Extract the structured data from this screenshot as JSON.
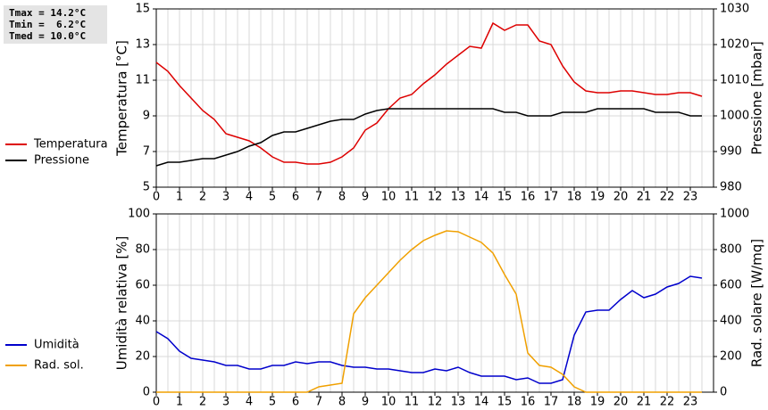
{
  "stats": [
    "Tmax = 14.2°C",
    "Tmin =  6.2°C",
    "Tmed = 10.0°C"
  ],
  "chart_data": [
    {
      "type": "line",
      "ylabel": "Temperatura [°C]",
      "y2label": "Pressione [mbar]",
      "x": [
        0,
        0.5,
        1,
        1.5,
        2,
        2.5,
        3,
        3.5,
        4,
        4.5,
        5,
        5.5,
        6,
        6.5,
        7,
        7.5,
        8,
        8.5,
        9,
        9.5,
        10,
        10.5,
        11,
        11.5,
        12,
        12.5,
        13,
        13.5,
        14,
        14.5,
        15,
        15.5,
        16,
        16.5,
        17,
        17.5,
        18,
        18.5,
        19,
        19.5,
        20,
        20.5,
        21,
        21.5,
        22,
        22.5,
        23,
        23.5
      ],
      "xlim": [
        0,
        24
      ],
      "xticks": [
        0,
        1,
        2,
        3,
        4,
        5,
        6,
        7,
        8,
        9,
        10,
        11,
        12,
        13,
        14,
        15,
        16,
        17,
        18,
        19,
        20,
        21,
        22,
        23
      ],
      "ylim": [
        5,
        15
      ],
      "yticks": [
        5,
        7,
        9,
        11,
        13,
        15
      ],
      "y2lim": [
        980,
        1030
      ],
      "y2ticks": [
        980,
        990,
        1000,
        1010,
        1020,
        1030
      ],
      "grid": true,
      "series": [
        {
          "name": "Temperatura",
          "color": "#dd0000",
          "values": [
            12.0,
            11.5,
            10.7,
            10.0,
            9.3,
            8.8,
            8.0,
            7.8,
            7.6,
            7.2,
            6.7,
            6.4,
            6.4,
            6.3,
            6.3,
            6.4,
            6.7,
            7.2,
            8.2,
            8.6,
            9.4,
            10.0,
            10.2,
            10.8,
            11.3,
            11.9,
            12.4,
            12.9,
            12.8,
            14.2,
            13.8,
            14.1,
            14.1,
            13.2,
            13.0,
            11.8,
            10.9,
            10.4,
            10.3,
            10.3,
            10.4,
            10.4,
            10.3,
            10.2,
            10.2,
            10.3,
            10.3,
            10.1
          ]
        },
        {
          "name": "Pressione",
          "color": "#000000",
          "axis": "y2",
          "values": [
            986,
            987,
            987,
            987.5,
            988,
            988,
            989,
            990,
            991.5,
            992.5,
            994.5,
            995.5,
            995.5,
            996.5,
            997.5,
            998.5,
            999,
            999,
            1000.5,
            1001.5,
            1002,
            1002,
            1002,
            1002,
            1002,
            1002,
            1002,
            1002,
            1002,
            1002,
            1001,
            1001,
            1000,
            1000,
            1000,
            1001,
            1001,
            1001,
            1002,
            1002,
            1002,
            1002,
            1002,
            1001,
            1001,
            1001,
            1000,
            1000
          ]
        }
      ]
    },
    {
      "type": "line",
      "ylabel": "Umidità relativa [%]",
      "y2label": "Rad. solare [W/mq]",
      "x": [
        0,
        0.5,
        1,
        1.5,
        2,
        2.5,
        3,
        3.5,
        4,
        4.5,
        5,
        5.5,
        6,
        6.5,
        7,
        7.5,
        8,
        8.5,
        9,
        9.5,
        10,
        10.5,
        11,
        11.5,
        12,
        12.5,
        13,
        13.5,
        14,
        14.5,
        15,
        15.5,
        16,
        16.5,
        17,
        17.5,
        18,
        18.5,
        19,
        19.5,
        20,
        20.5,
        21,
        21.5,
        22,
        22.5,
        23,
        23.5
      ],
      "xlim": [
        0,
        24
      ],
      "xticks": [
        0,
        1,
        2,
        3,
        4,
        5,
        6,
        7,
        8,
        9,
        10,
        11,
        12,
        13,
        14,
        15,
        16,
        17,
        18,
        19,
        20,
        21,
        22,
        23
      ],
      "ylim": [
        0,
        100
      ],
      "yticks": [
        0,
        20,
        40,
        60,
        80,
        100
      ],
      "y2lim": [
        0,
        1000
      ],
      "y2ticks": [
        0,
        200,
        400,
        600,
        800,
        1000
      ],
      "grid": true,
      "series": [
        {
          "name": "Umidità",
          "color": "#0000cc",
          "values": [
            34,
            30,
            23,
            19,
            18,
            17,
            15,
            15,
            13,
            13,
            15,
            15,
            17,
            16,
            17,
            17,
            15,
            14,
            14,
            13,
            13,
            12,
            11,
            11,
            13,
            12,
            14,
            11,
            9,
            9,
            9,
            7,
            8,
            5,
            5,
            7,
            32,
            45,
            46,
            46,
            52,
            57,
            53,
            55,
            59,
            61,
            65,
            64
          ]
        },
        {
          "name": "Rad. sol.",
          "color": "#f0a000",
          "axis": "y2",
          "values": [
            0,
            0,
            0,
            0,
            0,
            0,
            0,
            0,
            0,
            0,
            0,
            0,
            0,
            0,
            30,
            40,
            50,
            440,
            530,
            600,
            670,
            740,
            800,
            850,
            880,
            905,
            900,
            870,
            840,
            780,
            660,
            550,
            220,
            150,
            140,
            100,
            30,
            0,
            0,
            0,
            0,
            0,
            0,
            0,
            0,
            0,
            0,
            0
          ]
        }
      ]
    }
  ]
}
